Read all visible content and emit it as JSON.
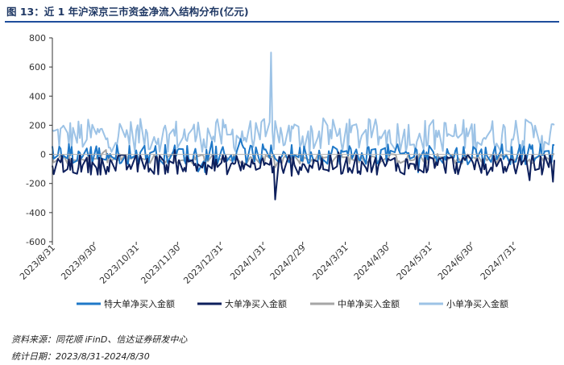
{
  "title": "图 13：近 1 年沪深京三市资金净流入结构分布(亿元)",
  "source": "资料来源：同花顺 iFinD、信达证券研发中心",
  "period": "统计日期：2023/8/31-2024/8/30",
  "colors": {
    "axis": "#333333",
    "zero_line": "#b0b0b0",
    "series": [
      "#1f78c8",
      "#0d1f5c",
      "#a6a6a6",
      "#9dc3e6"
    ]
  },
  "chart_data": {
    "type": "line",
    "title": "近 1 年沪深京三市资金净流入结构分布(亿元)",
    "xlabel": "",
    "ylabel": "",
    "ylim": [
      -600,
      800
    ],
    "yticks": [
      -600,
      -400,
      -200,
      0,
      200,
      400,
      600,
      800
    ],
    "x_start": "2023-08-31",
    "x_end": "2024-08-30",
    "x_ticks": [
      "2023/8/31",
      "2023/9/30",
      "2023/10/31",
      "2023/11/30",
      "2023/12/31",
      "2024/1/31",
      "2024/2/29",
      "2024/3/31",
      "2024/4/30",
      "2024/5/31",
      "2024/6/30",
      "2024/7/31"
    ],
    "legend_position": "bottom",
    "grid": false,
    "series": [
      {
        "name": "特大单净买入金额",
        "approx_mean": 0,
        "approx_range": [
          -230,
          140
        ],
        "color": "#1f78c8"
      },
      {
        "name": "大单净买入金额",
        "approx_mean": -70,
        "approx_range": [
          -310,
          30
        ],
        "color": "#0d1f5c"
      },
      {
        "name": "中单净买入金额",
        "approx_mean": -30,
        "approx_range": [
          -190,
          30
        ],
        "color": "#a6a6a6"
      },
      {
        "name": "小单净买入金额",
        "approx_mean": 130,
        "approx_range": [
          -100,
          700
        ],
        "color": "#9dc3e6"
      }
    ],
    "annotations": [
      {
        "series": "小单净买入金额",
        "date": "2024-02-06",
        "value": 700
      }
    ]
  }
}
